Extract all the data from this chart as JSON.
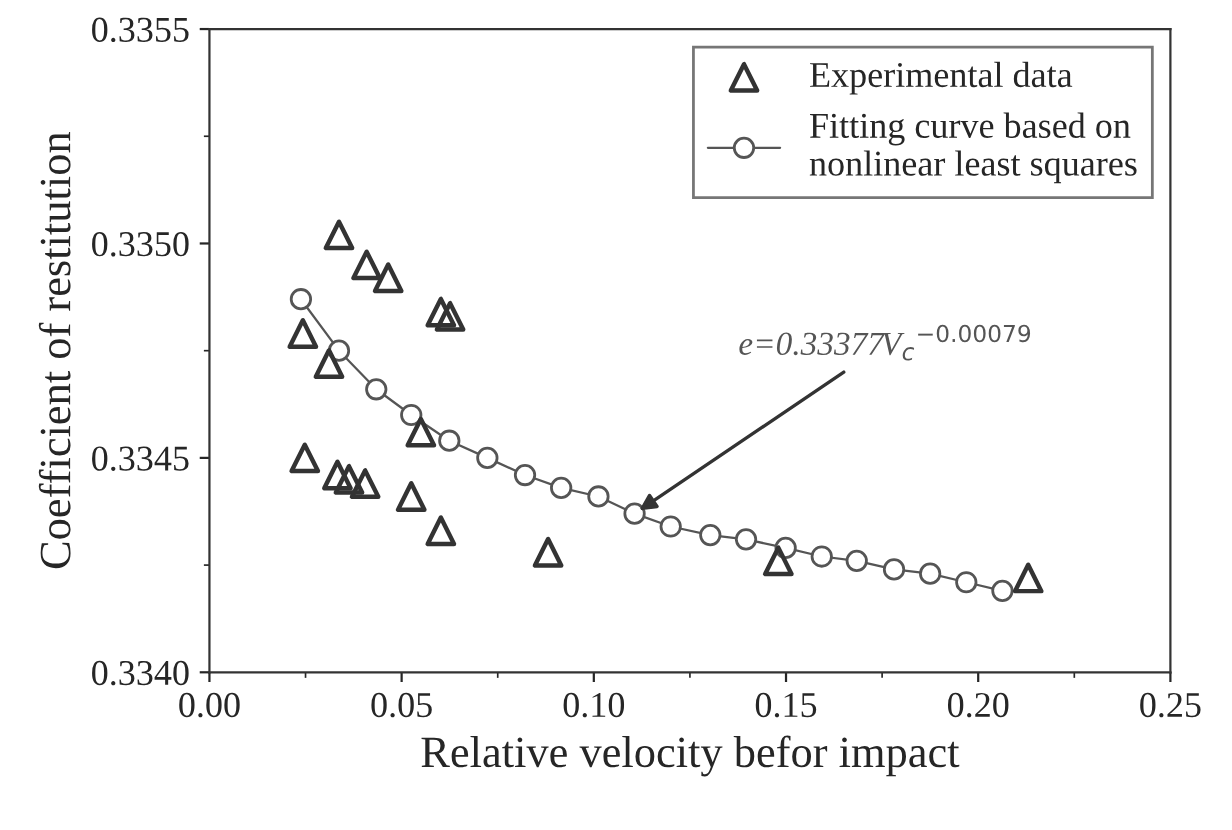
{
  "chart_data": {
    "type": "scatter",
    "xlabel": "Relative velocity befor impact",
    "ylabel": "Coefficient of restitution",
    "series": [
      {
        "name": "Experimental data",
        "marker": "triangle",
        "color": "#333333",
        "x": [
          0.0337,
          0.0409,
          0.0465,
          0.0602,
          0.0626,
          0.0243,
          0.0311,
          0.055,
          0.0248,
          0.0333,
          0.0363,
          0.0405,
          0.0525,
          0.0602,
          0.0881,
          0.148,
          0.213
        ],
        "values": [
          0.33502,
          0.33495,
          0.33492,
          0.33484,
          0.33483,
          0.33479,
          0.33472,
          0.33456,
          0.3345,
          0.33446,
          0.33445,
          0.33444,
          0.33441,
          0.33433,
          0.33428,
          0.33426,
          0.33422
        ]
      },
      {
        "name": "Fitting curve based on\nnonlinear least squares",
        "type": "line",
        "marker": "circle",
        "line_style": "solid",
        "color": "#555555",
        "x": [
          0.0238,
          0.0337,
          0.0434,
          0.0525,
          0.0624,
          0.0723,
          0.0821,
          0.0915,
          0.1012,
          0.1106,
          0.12,
          0.1303,
          0.1396,
          0.1499,
          0.1593,
          0.1684,
          0.1781,
          0.1875,
          0.1969,
          0.2063
        ],
        "values": [
          0.33487,
          0.33475,
          0.33466,
          0.3346,
          0.33454,
          0.3345,
          0.33446,
          0.33443,
          0.33441,
          0.33437,
          0.33434,
          0.33432,
          0.33431,
          0.33429,
          0.33427,
          0.33426,
          0.33424,
          0.33423,
          0.33421,
          0.33419
        ]
      }
    ],
    "annotations": [
      {
        "text": "e=0.33377V$_{c}$$^{−0.00079}$",
        "x": 0.1106,
        "y": 0.33437
      }
    ],
    "xlim": [
      0,
      0.25
    ],
    "ylim": [
      0.334,
      0.3355
    ],
    "xticks": [
      {
        "value": 0,
        "label": "0.00"
      },
      {
        "value": 0.05,
        "label": "0.05"
      },
      {
        "value": 0.1,
        "label": "0.10"
      },
      {
        "value": 0.15,
        "label": "0.15"
      },
      {
        "value": 0.2,
        "label": "0.20"
      },
      {
        "value": 0.25,
        "label": "0.25"
      }
    ],
    "yticks": [
      {
        "value": 0.334,
        "label": "0.3340"
      },
      {
        "value": 0.3345,
        "label": "0.3345"
      },
      {
        "value": 0.335,
        "label": "0.3350"
      },
      {
        "value": 0.3355,
        "label": "0.3355"
      }
    ],
    "legend": "top right",
    "grid": false
  }
}
